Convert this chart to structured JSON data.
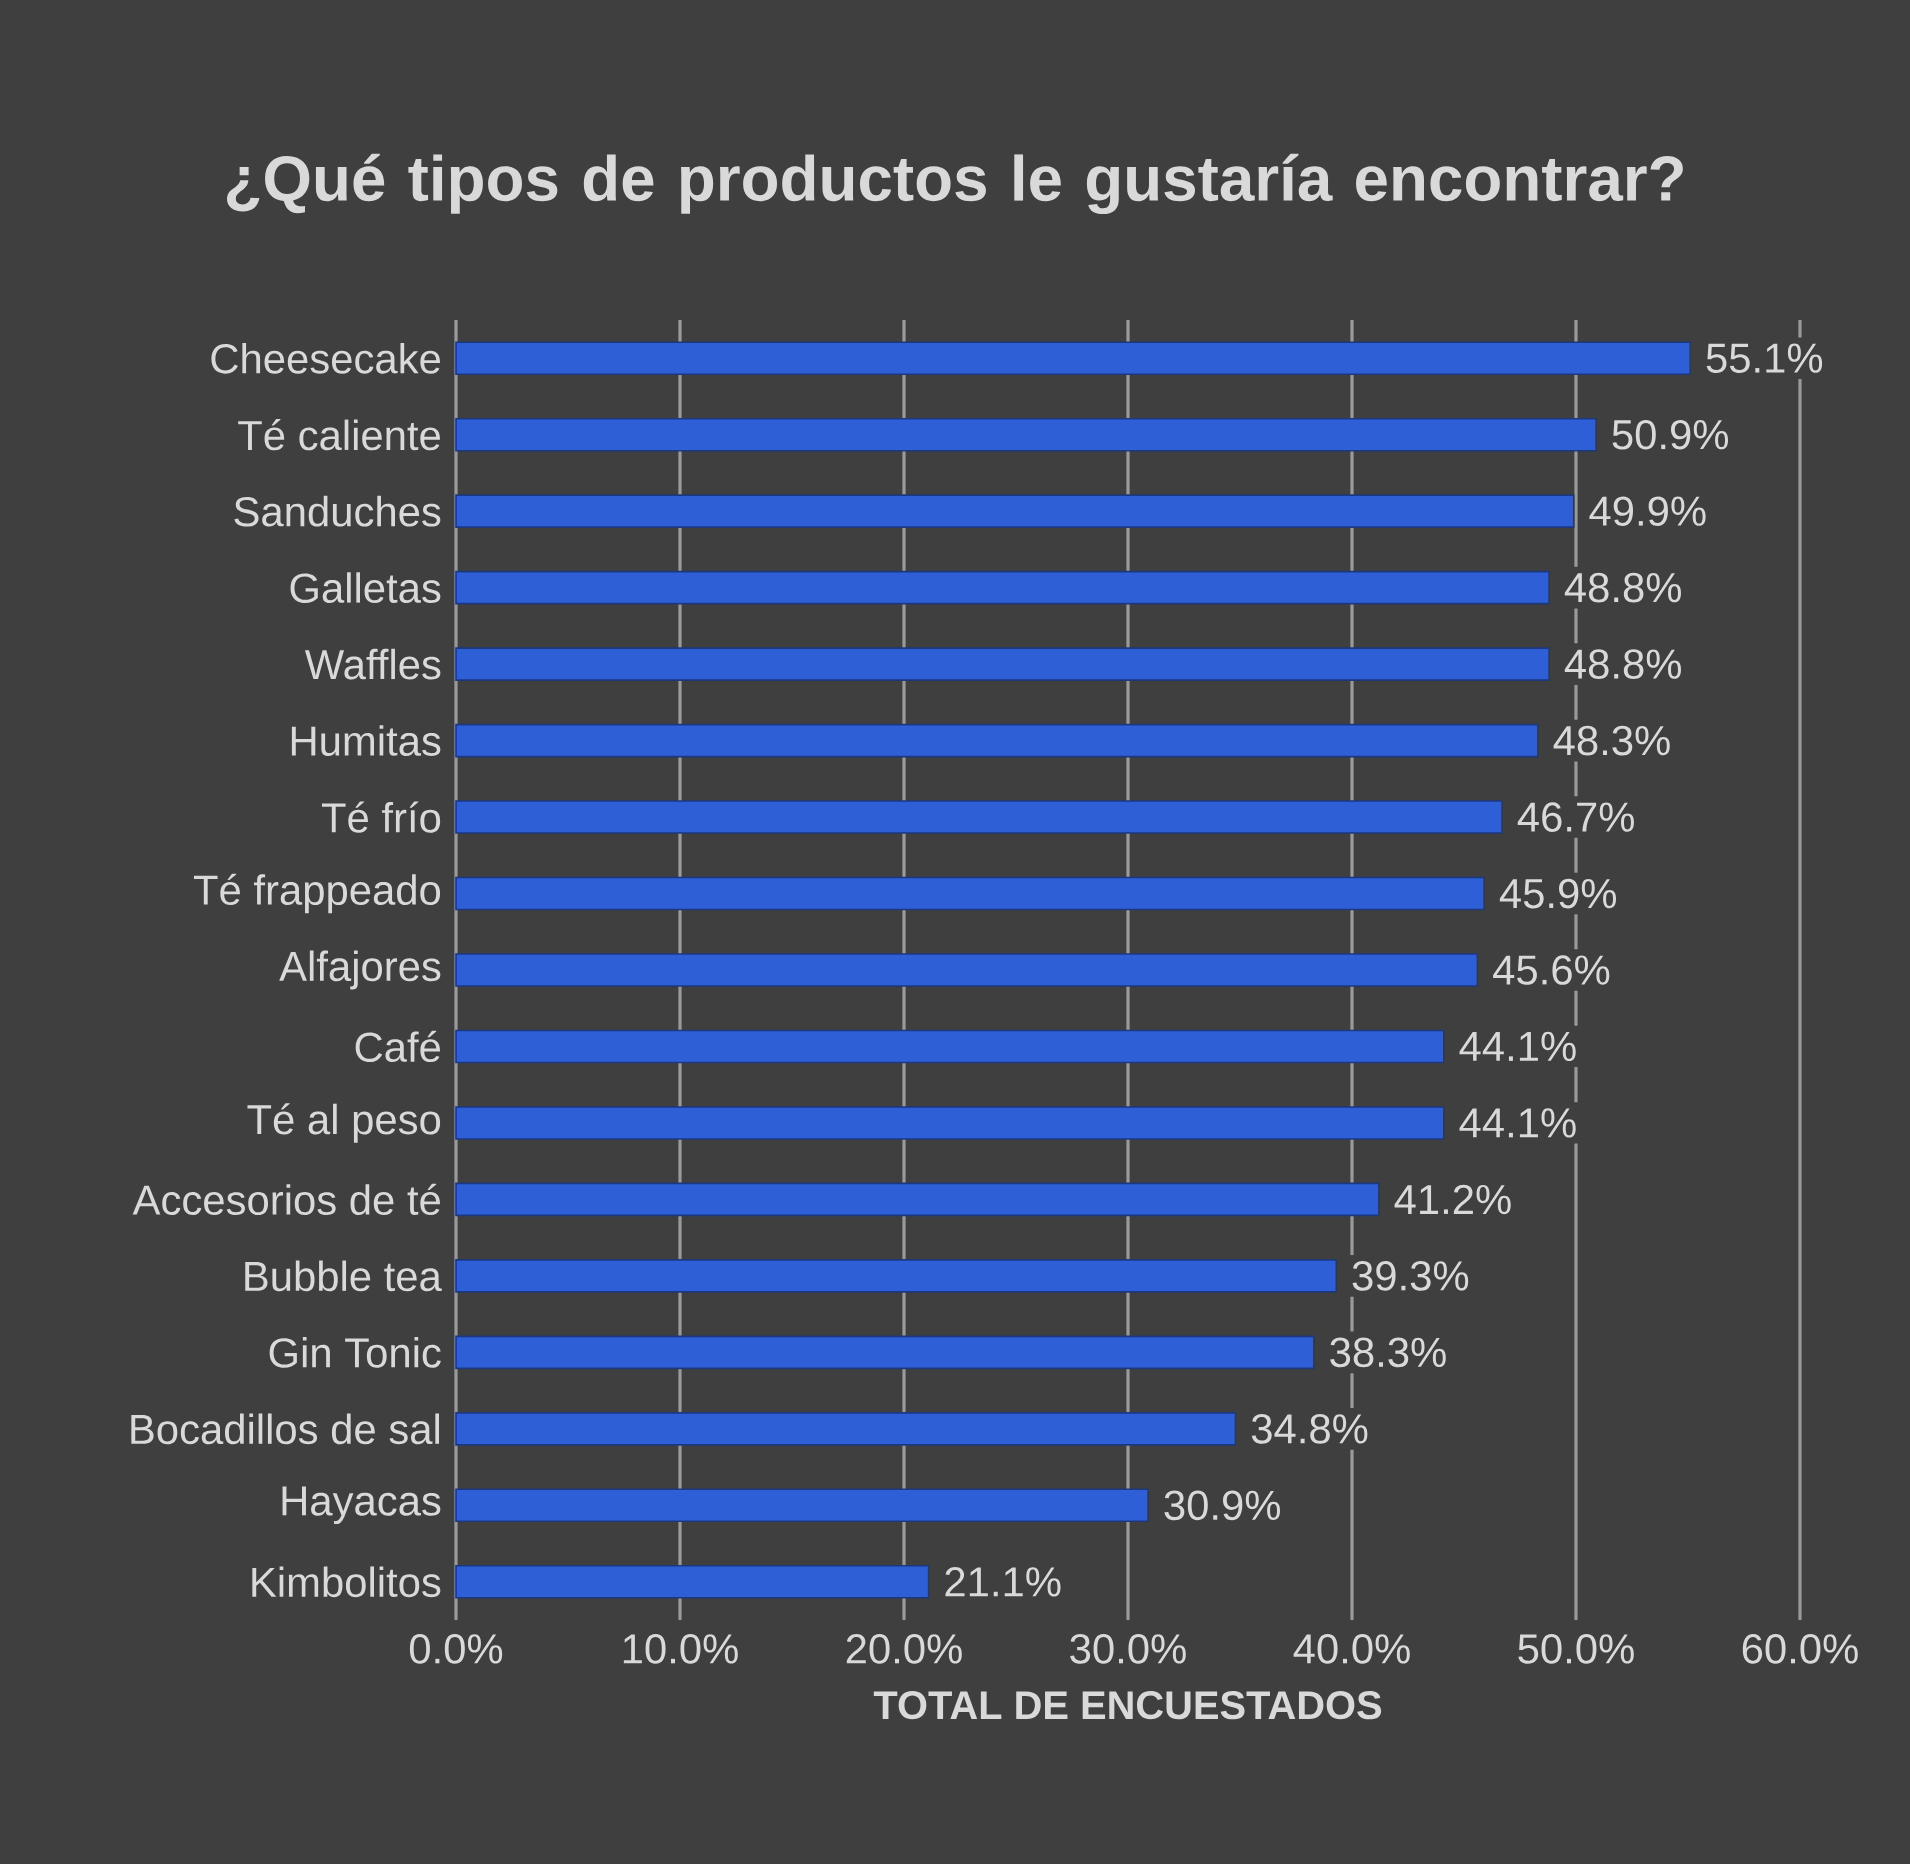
{
  "chart_data": {
    "type": "bar",
    "orientation": "horizontal",
    "title": "¿Qué tipos de productos le gustaría encontrar?",
    "xlabel": "TOTAL DE ENCUESTADOS",
    "categories": [
      "Cheesecake",
      "Té caliente",
      "Sanduches",
      "Galletas",
      "Waffles",
      "Humitas",
      "Té frío",
      "Té frappeado",
      "Alfajores",
      "Café",
      "Té al peso",
      "Accesorios de té",
      "Bubble tea",
      "Gin Tonic",
      "Bocadillos de sal",
      "Hayacas",
      "Kimbolitos"
    ],
    "values": [
      55.1,
      50.9,
      49.9,
      48.8,
      48.8,
      48.3,
      46.7,
      45.9,
      45.6,
      44.1,
      44.1,
      41.2,
      39.3,
      38.3,
      34.8,
      30.9,
      21.1
    ],
    "value_labels": [
      "55.1%",
      "50.9%",
      "49.9%",
      "48.8%",
      "48.8%",
      "48.3%",
      "46.7%",
      "45.9%",
      "45.6%",
      "44.1%",
      "44.1%",
      "41.2%",
      "39.3%",
      "38.3%",
      "34.8%",
      "30.9%",
      "21.1%"
    ],
    "color": "#2e5fd6",
    "xlim": [
      0,
      60
    ],
    "xticks": [
      {
        "value": 0,
        "label": "0.0%"
      },
      {
        "value": 10,
        "label": "10.0%"
      },
      {
        "value": 20,
        "label": "20.0%"
      },
      {
        "value": 30,
        "label": "30.0%"
      },
      {
        "value": 40,
        "label": "40.0%"
      },
      {
        "value": 50,
        "label": "50.0%"
      },
      {
        "value": 60,
        "label": "60.0%"
      }
    ],
    "grid": "x"
  }
}
